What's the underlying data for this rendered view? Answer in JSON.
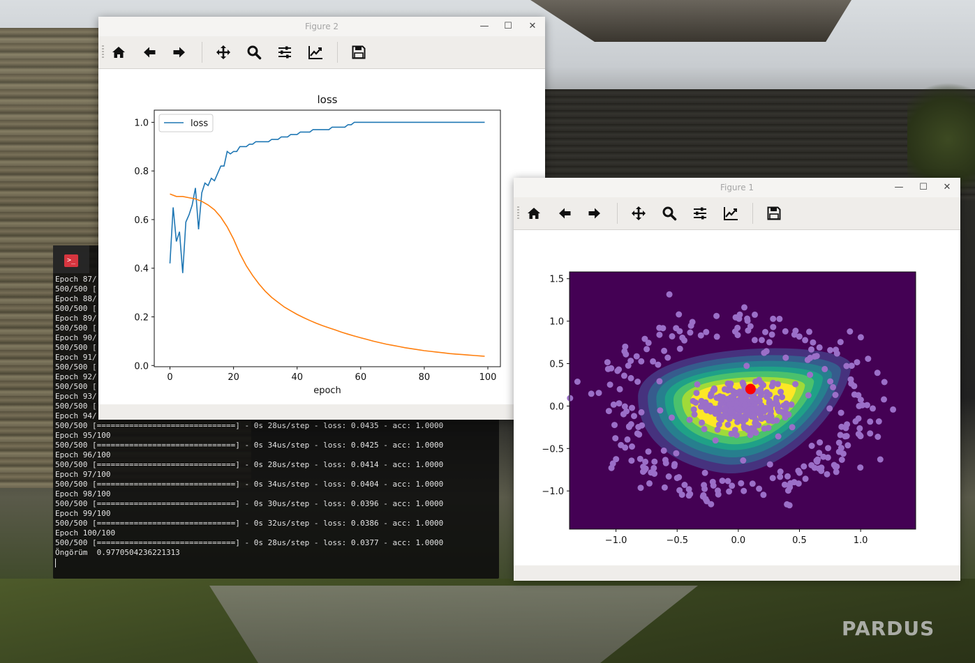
{
  "desktop": {
    "watermark": "PARDUS"
  },
  "terminal": {
    "icon_glyph": ">_",
    "lines": [
      "Epoch 87/",
      "500/500 [",
      "Epoch 88/",
      "500/500 [",
      "Epoch 89/",
      "500/500 [",
      "Epoch 90/",
      "500/500 [",
      "Epoch 91/",
      "500/500 [",
      "Epoch 92/",
      "500/500 [",
      "Epoch 93/",
      "500/500 [",
      "Epoch 94/",
      "500/500 [==============================] - 0s 28us/step - loss: 0.0435 - acc: 1.0000",
      "Epoch 95/100",
      "500/500 [==============================] - 0s 34us/step - loss: 0.0425 - acc: 1.0000",
      "Epoch 96/100",
      "500/500 [==============================] - 0s 28us/step - loss: 0.0414 - acc: 1.0000",
      "Epoch 97/100",
      "500/500 [==============================] - 0s 34us/step - loss: 0.0404 - acc: 1.0000",
      "Epoch 98/100",
      "500/500 [==============================] - 0s 30us/step - loss: 0.0396 - acc: 1.0000",
      "Epoch 99/100",
      "500/500 [==============================] - 0s 32us/step - loss: 0.0386 - acc: 1.0000",
      "Epoch 100/100",
      "500/500 [==============================] - 0s 28us/step - loss: 0.0377 - acc: 1.0000",
      "Öngörüm  0.9770504236221313"
    ]
  },
  "figure2": {
    "window_title": "Figure 2",
    "toolbar": [
      "home-icon",
      "back-arrow-icon",
      "forward-arrow-icon",
      "move-icon",
      "zoom-icon",
      "configure-icon",
      "edit-axis-icon",
      "save-icon"
    ],
    "window_controls": {
      "minimize": "—",
      "maximize": "☐",
      "close": "✕"
    }
  },
  "figure1": {
    "window_title": "Figure 1",
    "toolbar": [
      "home-icon",
      "back-arrow-icon",
      "forward-arrow-icon",
      "move-icon",
      "zoom-icon",
      "configure-icon",
      "edit-axis-icon",
      "save-icon"
    ],
    "window_controls": {
      "minimize": "—",
      "maximize": "☐",
      "close": "✕"
    }
  },
  "chart_data": [
    {
      "type": "line",
      "title": "loss",
      "xlabel": "epoch",
      "ylabel": "",
      "xlim": [
        -4.95,
        103.95
      ],
      "ylim": [
        -0.005,
        1.05
      ],
      "xticks": [
        "0",
        "20",
        "40",
        "60",
        "80",
        "100"
      ],
      "yticks": [
        "0.0",
        "0.2",
        "0.4",
        "0.6",
        "0.8",
        "1.0"
      ],
      "legend": {
        "position": "top-left",
        "entries": [
          "loss"
        ]
      },
      "series": [
        {
          "name": "loss",
          "color": "#1f77b4",
          "x": [
            0,
            1,
            2,
            3,
            4,
            5,
            6,
            7,
            8,
            9,
            10,
            11,
            12,
            13,
            14,
            15,
            16,
            17,
            18,
            19,
            20,
            21,
            22,
            23,
            24,
            25,
            26,
            27,
            28,
            29,
            30,
            31,
            32,
            33,
            34,
            35,
            36,
            37,
            38,
            39,
            40,
            41,
            42,
            43,
            44,
            45,
            46,
            47,
            48,
            49,
            50,
            51,
            52,
            53,
            54,
            55,
            56,
            57,
            58,
            59,
            60,
            61,
            62,
            63,
            64,
            65,
            66,
            67,
            68,
            69,
            70,
            71,
            72,
            73,
            74,
            75,
            76,
            77,
            78,
            79,
            80,
            81,
            82,
            83,
            84,
            85,
            86,
            87,
            88,
            89,
            90,
            91,
            92,
            93,
            94,
            95,
            96,
            97,
            98,
            99
          ],
          "y": [
            0.42,
            0.65,
            0.51,
            0.55,
            0.38,
            0.59,
            0.62,
            0.66,
            0.73,
            0.56,
            0.71,
            0.75,
            0.74,
            0.77,
            0.76,
            0.79,
            0.82,
            0.82,
            0.88,
            0.87,
            0.88,
            0.88,
            0.9,
            0.9,
            0.9,
            0.91,
            0.91,
            0.92,
            0.92,
            0.92,
            0.92,
            0.92,
            0.93,
            0.93,
            0.93,
            0.94,
            0.94,
            0.94,
            0.95,
            0.95,
            0.95,
            0.96,
            0.96,
            0.96,
            0.96,
            0.97,
            0.97,
            0.97,
            0.97,
            0.97,
            0.97,
            0.98,
            0.98,
            0.98,
            0.98,
            0.98,
            0.99,
            0.99,
            1.0,
            1.0,
            1.0,
            1.0,
            1.0,
            1.0,
            1.0,
            1.0,
            1.0,
            1.0,
            1.0,
            1.0,
            1.0,
            1.0,
            1.0,
            1.0,
            1.0,
            1.0,
            1.0,
            1.0,
            1.0,
            1.0,
            1.0,
            1.0,
            1.0,
            1.0,
            1.0,
            1.0,
            1.0,
            1.0,
            1.0,
            1.0,
            1.0,
            1.0,
            1.0,
            1.0,
            1.0,
            1.0,
            1.0,
            1.0,
            1.0,
            1.0
          ]
        },
        {
          "name": "",
          "color": "#ff7f0e",
          "x": [
            0,
            2,
            4,
            6,
            8,
            10,
            12,
            14,
            16,
            18,
            20,
            22,
            24,
            26,
            28,
            30,
            32,
            34,
            36,
            38,
            40,
            42,
            44,
            46,
            48,
            50,
            52,
            54,
            56,
            58,
            60,
            62,
            64,
            66,
            68,
            70,
            72,
            74,
            76,
            78,
            80,
            82,
            84,
            86,
            88,
            90,
            92,
            94,
            96,
            98,
            99
          ],
          "y": [
            0.705,
            0.695,
            0.695,
            0.69,
            0.685,
            0.675,
            0.66,
            0.64,
            0.61,
            0.57,
            0.52,
            0.46,
            0.41,
            0.37,
            0.335,
            0.305,
            0.28,
            0.26,
            0.24,
            0.225,
            0.21,
            0.197,
            0.185,
            0.174,
            0.164,
            0.155,
            0.146,
            0.137,
            0.129,
            0.121,
            0.114,
            0.107,
            0.1,
            0.094,
            0.088,
            0.083,
            0.078,
            0.073,
            0.069,
            0.065,
            0.061,
            0.058,
            0.055,
            0.052,
            0.049,
            0.047,
            0.045,
            0.043,
            0.041,
            0.039,
            0.038
          ]
        }
      ]
    },
    {
      "type": "scatter",
      "title": "",
      "xlabel": "",
      "ylabel": "",
      "xlim": [
        -1.38,
        1.45
      ],
      "ylim": [
        -1.45,
        1.58
      ],
      "xticks": [
        "−1.0",
        "−0.5",
        "0.0",
        "0.5",
        "1.0"
      ],
      "yticks": [
        "−1.0",
        "−0.5",
        "0.0",
        "0.5",
        "1.0",
        "1.5"
      ],
      "grid": false,
      "background": "contourf (viridis) decision surface",
      "contour_colors": [
        "#440154",
        "#46327e",
        "#365c8d",
        "#277f8e",
        "#1fa187",
        "#4ac16d",
        "#a0da39",
        "#fde725"
      ],
      "point_color": "#9b6fc8",
      "query_point": {
        "x": 0.1,
        "y": 0.2,
        "color": "#ff0000"
      },
      "scatter_seed": 7,
      "outer_ring": {
        "count": 250,
        "radius": 1.0,
        "noise": 0.13
      },
      "inner_cluster": {
        "count": 250,
        "center": [
          0.05,
          0.0
        ],
        "spread": [
          0.17,
          0.15
        ]
      }
    }
  ]
}
